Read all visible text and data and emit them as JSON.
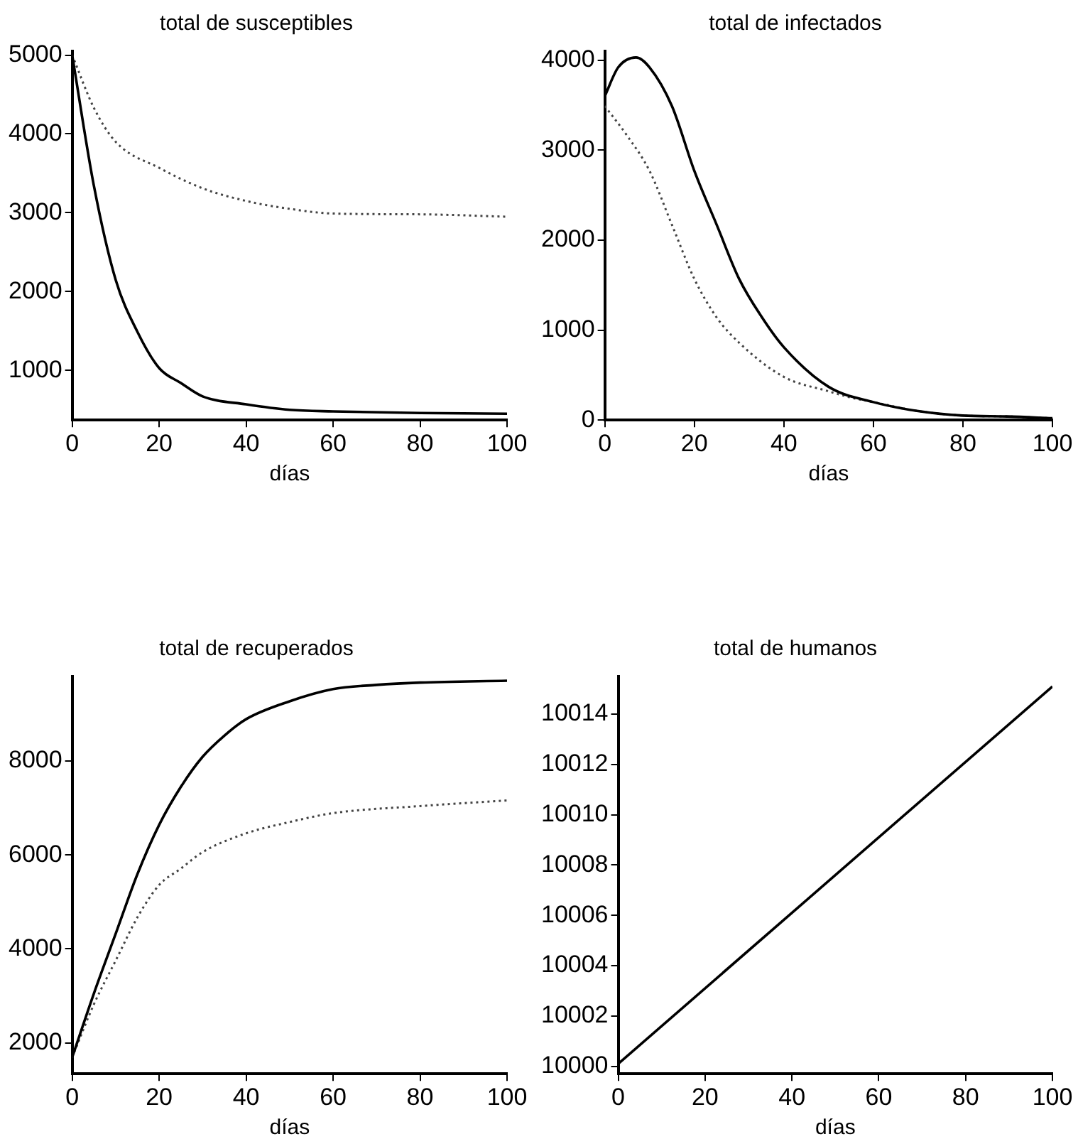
{
  "chart_data": [
    {
      "type": "line",
      "title": "total de susceptibles",
      "xlabel": "días",
      "xlim": [
        0,
        100
      ],
      "xticks": [
        0,
        20,
        40,
        60,
        80,
        100
      ],
      "ylim": [
        370,
        5050
      ],
      "yticks": [
        1000,
        2000,
        3000,
        4000,
        5000
      ],
      "grid": false,
      "legend": false,
      "marker": "none",
      "series": [
        {
          "color": "#000000",
          "line_style": "solid",
          "x": [
            0,
            5,
            10,
            15,
            20,
            25,
            30,
            40,
            50,
            60,
            80,
            100
          ],
          "values": [
            5000,
            3340,
            2150,
            1490,
            1030,
            840,
            670,
            570,
            500,
            480,
            460,
            450
          ]
        },
        {
          "color": "#444444",
          "line_style": "dotted",
          "x": [
            0,
            5,
            10,
            20,
            30,
            40,
            50,
            60,
            80,
            100
          ],
          "values": [
            5000,
            4330,
            3900,
            3570,
            3310,
            3150,
            3050,
            2990,
            2980,
            2950
          ]
        }
      ]
    },
    {
      "type": "line",
      "title": "total de infectados",
      "xlabel": "días",
      "xlim": [
        0,
        100
      ],
      "xticks": [
        0,
        20,
        40,
        60,
        80,
        100
      ],
      "ylim": [
        0,
        4100
      ],
      "yticks": [
        0,
        1000,
        2000,
        3000,
        4000
      ],
      "grid": false,
      "legend": false,
      "marker": "none",
      "series": [
        {
          "color": "#000000",
          "line_style": "solid",
          "x": [
            0,
            3,
            7,
            10,
            15,
            20,
            25,
            30,
            35,
            40,
            50,
            60,
            70,
            80,
            90,
            100
          ],
          "values": [
            3600,
            3920,
            4030,
            3920,
            3490,
            2770,
            2170,
            1570,
            1150,
            810,
            370,
            200,
            100,
            50,
            40,
            20
          ]
        },
        {
          "color": "#444444",
          "line_style": "dotted",
          "x": [
            0,
            5,
            10,
            15,
            20,
            25,
            30,
            40,
            50,
            55,
            60,
            70,
            80,
            90,
            100
          ],
          "values": [
            3490,
            3160,
            2770,
            2170,
            1570,
            1140,
            860,
            480,
            320,
            250,
            200,
            100,
            50,
            40,
            20
          ]
        }
      ]
    },
    {
      "type": "line",
      "title": "total de recuperados",
      "xlabel": "días",
      "xlim": [
        0,
        100
      ],
      "xticks": [
        0,
        20,
        40,
        60,
        80,
        100
      ],
      "ylim": [
        1340,
        9800
      ],
      "yticks": [
        2000,
        4000,
        6000,
        8000
      ],
      "grid": false,
      "legend": false,
      "marker": "none",
      "series": [
        {
          "color": "#000000",
          "line_style": "solid",
          "x": [
            0,
            5,
            10,
            15,
            20,
            25,
            30,
            35,
            40,
            50,
            60,
            70,
            80,
            100
          ],
          "values": [
            1690,
            3050,
            4320,
            5590,
            6640,
            7450,
            8090,
            8540,
            8890,
            9270,
            9530,
            9620,
            9670,
            9710
          ]
        },
        {
          "color": "#444444",
          "line_style": "dotted",
          "x": [
            0,
            5,
            10,
            15,
            20,
            25,
            30,
            40,
            50,
            60,
            80,
            100
          ],
          "values": [
            1690,
            2820,
            3750,
            4670,
            5360,
            5710,
            6060,
            6460,
            6700,
            6890,
            7040,
            7160
          ]
        }
      ]
    },
    {
      "type": "line",
      "title": "total de humanos",
      "xlabel": "días",
      "xlim": [
        0,
        100
      ],
      "xticks": [
        0,
        20,
        40,
        60,
        80,
        100
      ],
      "ylim": [
        9999.7,
        10015.5
      ],
      "yticks": [
        10000,
        10002,
        10004,
        10006,
        10008,
        10010,
        10012,
        10014
      ],
      "grid": false,
      "legend": false,
      "marker": "none",
      "series": [
        {
          "color": "#000000",
          "line_style": "solid",
          "x": [
            0,
            100
          ],
          "values": [
            10000.1,
            10015.1
          ]
        }
      ]
    }
  ]
}
